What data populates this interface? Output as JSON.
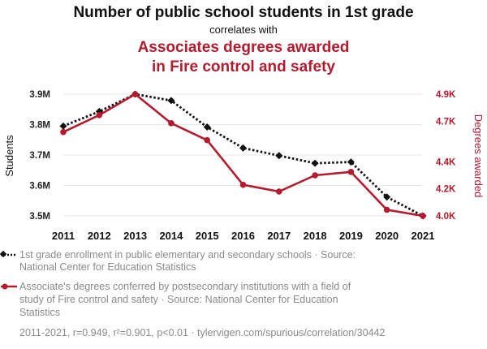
{
  "title": {
    "main": "Number of public school students in 1st grade",
    "connector": "correlates with",
    "second_line1": "Associates degrees awarded",
    "second_line2": "in Fire control and safety"
  },
  "colors": {
    "series1": "#111111",
    "series2": "#b31b2e",
    "legend_text": "#8a8a8a"
  },
  "chart_data": {
    "type": "line",
    "x": [
      2011,
      2012,
      2013,
      2014,
      2015,
      2016,
      2017,
      2018,
      2019,
      2020,
      2021
    ],
    "x_tick_labels": [
      "2011",
      "2012",
      "2013",
      "2014",
      "2015",
      "2016",
      "2017",
      "2018",
      "2019",
      "2020",
      "2021"
    ],
    "ylabel_left": "Students",
    "ylabel_right": "Degrees awarded",
    "ylim_left": [
      3500000,
      3900000
    ],
    "ylim_right": [
      4000,
      4900
    ],
    "yticks_left": [
      {
        "value": 3500000,
        "label": "3.5M"
      },
      {
        "value": 3600000,
        "label": "3.6M"
      },
      {
        "value": 3700000,
        "label": "3.7M"
      },
      {
        "value": 3800000,
        "label": "3.8M"
      },
      {
        "value": 3900000,
        "label": "3.9M"
      }
    ],
    "yticks_right": [
      {
        "value": 4000,
        "label": "4.0K"
      },
      {
        "value": 4200,
        "label": "4.2K"
      },
      {
        "value": 4400,
        "label": "4.4K"
      },
      {
        "value": 4700,
        "label": "4.7K"
      },
      {
        "value": 4900,
        "label": "4.9K"
      }
    ],
    "series": [
      {
        "name": "1st grade enrollment in public elementary and secondary schools",
        "axis": "left",
        "style": "dotted",
        "marker": "diamond",
        "values": [
          3795000,
          3843000,
          3900000,
          3879000,
          3792000,
          3723000,
          3698000,
          3673000,
          3677000,
          3562000,
          3500000
        ]
      },
      {
        "name": "Associate's degrees conferred by postsecondary institutions with a field of study of Fire control and safety",
        "axis": "right",
        "style": "solid",
        "marker": "circle",
        "values": [
          4620,
          4745,
          4900,
          4685,
          4560,
          4230,
          4180,
          4300,
          4325,
          4045,
          4000
        ]
      }
    ]
  },
  "legend": {
    "items": [
      {
        "lines": [
          "1st grade enrollment in public elementary and secondary schools · Source:",
          "National Center for Education Statistics"
        ]
      },
      {
        "lines": [
          "Associate's degrees conferred by postsecondary institutions with a field of",
          "study of Fire control and safety · Source: National Center for Education",
          "Statistics"
        ]
      }
    ]
  },
  "footer": {
    "text": "2011-2021, r=0.949, r²=0.901, p<0.01 · tylervigen.com/spurious/correlation/30442"
  }
}
